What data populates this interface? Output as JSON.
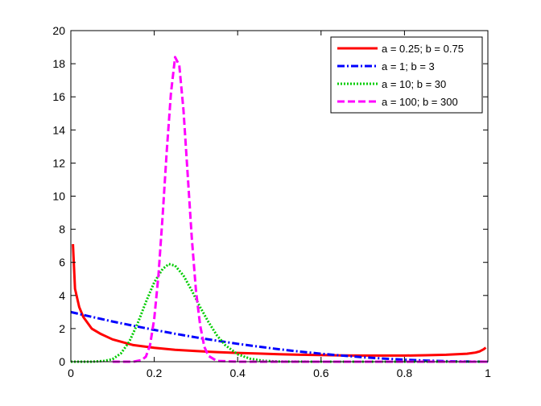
{
  "chart_data": {
    "type": "line",
    "title": "",
    "xlabel": "",
    "ylabel": "",
    "xlim": [
      0,
      1
    ],
    "ylim": [
      0,
      20
    ],
    "xticks": [
      0,
      0.2,
      0.4,
      0.6,
      0.8,
      1
    ],
    "xtick_labels": [
      "0",
      "0.2",
      "0.4",
      "0.6",
      "0.8",
      "1"
    ],
    "yticks": [
      0,
      2,
      4,
      6,
      8,
      10,
      12,
      14,
      16,
      18,
      20
    ],
    "ytick_labels": [
      "0",
      "2",
      "4",
      "6",
      "8",
      "10",
      "12",
      "14",
      "16",
      "18",
      "20"
    ],
    "grid": false,
    "legend_position": "top-right",
    "series": [
      {
        "name": "a = 0.25; b = 0.75",
        "color": "#ff0000",
        "style": "solid",
        "x": [
          0.005,
          0.01,
          0.02,
          0.03,
          0.05,
          0.07,
          0.1,
          0.15,
          0.2,
          0.25,
          0.3,
          0.35,
          0.4,
          0.45,
          0.5,
          0.55,
          0.6,
          0.65,
          0.7,
          0.75,
          0.8,
          0.85,
          0.9,
          0.95,
          0.97,
          0.98,
          0.99,
          0.995
        ],
        "y": [
          7.1,
          4.4,
          3.3,
          2.7,
          2.0,
          1.7,
          1.35,
          1.0,
          0.84,
          0.72,
          0.64,
          0.58,
          0.53,
          0.49,
          0.45,
          0.42,
          0.4,
          0.38,
          0.37,
          0.37,
          0.37,
          0.39,
          0.42,
          0.48,
          0.55,
          0.62,
          0.75,
          0.85
        ]
      },
      {
        "name": "a = 1; b = 3",
        "color": "#0000ff",
        "style": "dashdot",
        "x": [
          0,
          0.05,
          0.1,
          0.15,
          0.2,
          0.25,
          0.3,
          0.35,
          0.4,
          0.45,
          0.5,
          0.55,
          0.6,
          0.65,
          0.7,
          0.75,
          0.8,
          0.85,
          0.9,
          0.95,
          1
        ],
        "y": [
          3.0,
          2.71,
          2.43,
          2.17,
          1.92,
          1.69,
          1.47,
          1.27,
          1.08,
          0.91,
          0.75,
          0.61,
          0.48,
          0.37,
          0.27,
          0.19,
          0.12,
          0.07,
          0.03,
          0.01,
          0
        ]
      },
      {
        "name": "a = 10; b = 30",
        "color": "#00cc00",
        "style": "dotted",
        "x": [
          0,
          0.05,
          0.08,
          0.1,
          0.12,
          0.14,
          0.16,
          0.18,
          0.2,
          0.22,
          0.235,
          0.25,
          0.27,
          0.29,
          0.31,
          0.33,
          0.35,
          0.37,
          0.4,
          0.43,
          0.46,
          0.5,
          0.6,
          0.8,
          1
        ],
        "y": [
          0,
          0.0,
          0.05,
          0.15,
          0.5,
          1.2,
          2.3,
          3.6,
          4.8,
          5.6,
          5.9,
          5.8,
          5.2,
          4.3,
          3.3,
          2.4,
          1.6,
          1.0,
          0.45,
          0.18,
          0.06,
          0.01,
          0,
          0,
          0
        ]
      },
      {
        "name": "a = 100; b = 300",
        "color": "#ff00ff",
        "style": "dashed",
        "x": [
          0.1,
          0.15,
          0.17,
          0.18,
          0.19,
          0.2,
          0.21,
          0.22,
          0.23,
          0.24,
          0.25,
          0.26,
          0.27,
          0.28,
          0.29,
          0.3,
          0.31,
          0.32,
          0.33,
          0.35,
          0.4,
          1
        ],
        "y": [
          0,
          0.0,
          0.1,
          0.3,
          1.0,
          2.6,
          5.2,
          8.8,
          12.7,
          16.2,
          18.4,
          17.9,
          15.2,
          11.4,
          7.5,
          4.3,
          2.2,
          0.9,
          0.35,
          0.05,
          0,
          0
        ]
      }
    ]
  }
}
